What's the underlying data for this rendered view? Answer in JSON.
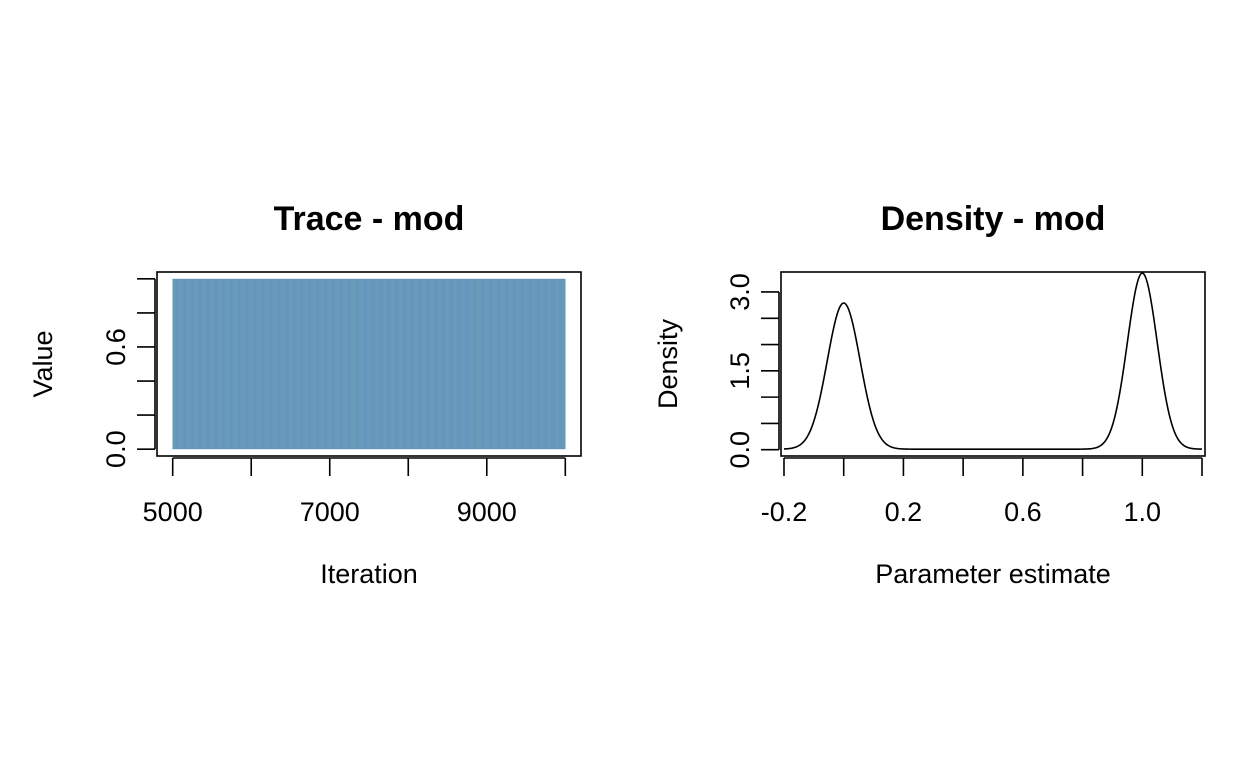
{
  "chart_data": [
    {
      "type": "line",
      "title": "Trace - mod",
      "xlabel": "Iteration",
      "ylabel": "Value",
      "xlim": [
        4800,
        10200
      ],
      "ylim": [
        -0.04,
        1.04
      ],
      "x_ticks": [
        5000,
        6000,
        7000,
        8000,
        9000,
        10000
      ],
      "x_tick_labels": [
        "5000",
        "",
        "7000",
        "",
        "9000",
        ""
      ],
      "y_ticks": [
        0.0,
        0.2,
        0.4,
        0.6,
        0.8,
        1.0
      ],
      "y_tick_labels": [
        "0.0",
        "",
        "",
        "0.6",
        "",
        ""
      ],
      "series": [
        {
          "color": "#6699bb",
          "x_range": [
            5000,
            10000
          ],
          "values_range": [
            0,
            1
          ],
          "description_values": "chain alternates between 0 and 1"
        }
      ],
      "grid": false
    },
    {
      "type": "line",
      "title": "Density - mod",
      "xlabel": "Parameter estimate",
      "ylabel": "Density",
      "xlim": [
        -0.21,
        1.21
      ],
      "ylim": [
        -0.12,
        3.38
      ],
      "x_ticks": [
        -0.2,
        0.0,
        0.2,
        0.4,
        0.6,
        0.8,
        1.0,
        1.2
      ],
      "x_tick_labels": [
        "-0.2",
        "",
        "0.2",
        "",
        "0.6",
        "",
        "1.0",
        ""
      ],
      "y_ticks": [
        0.0,
        0.5,
        1.0,
        1.5,
        2.0,
        2.5,
        3.0
      ],
      "y_tick_labels": [
        "0.0",
        "",
        "",
        "1.5",
        "",
        "",
        "3.0"
      ],
      "series": [
        {
          "color": "#000000",
          "peaks": [
            {
              "center": 0.0,
              "height": 2.78,
              "sd": 0.055
            },
            {
              "center": 1.0,
              "height": 3.35,
              "sd": 0.05
            }
          ],
          "x_range": [
            -0.2,
            1.2
          ]
        }
      ],
      "grid": false
    }
  ]
}
